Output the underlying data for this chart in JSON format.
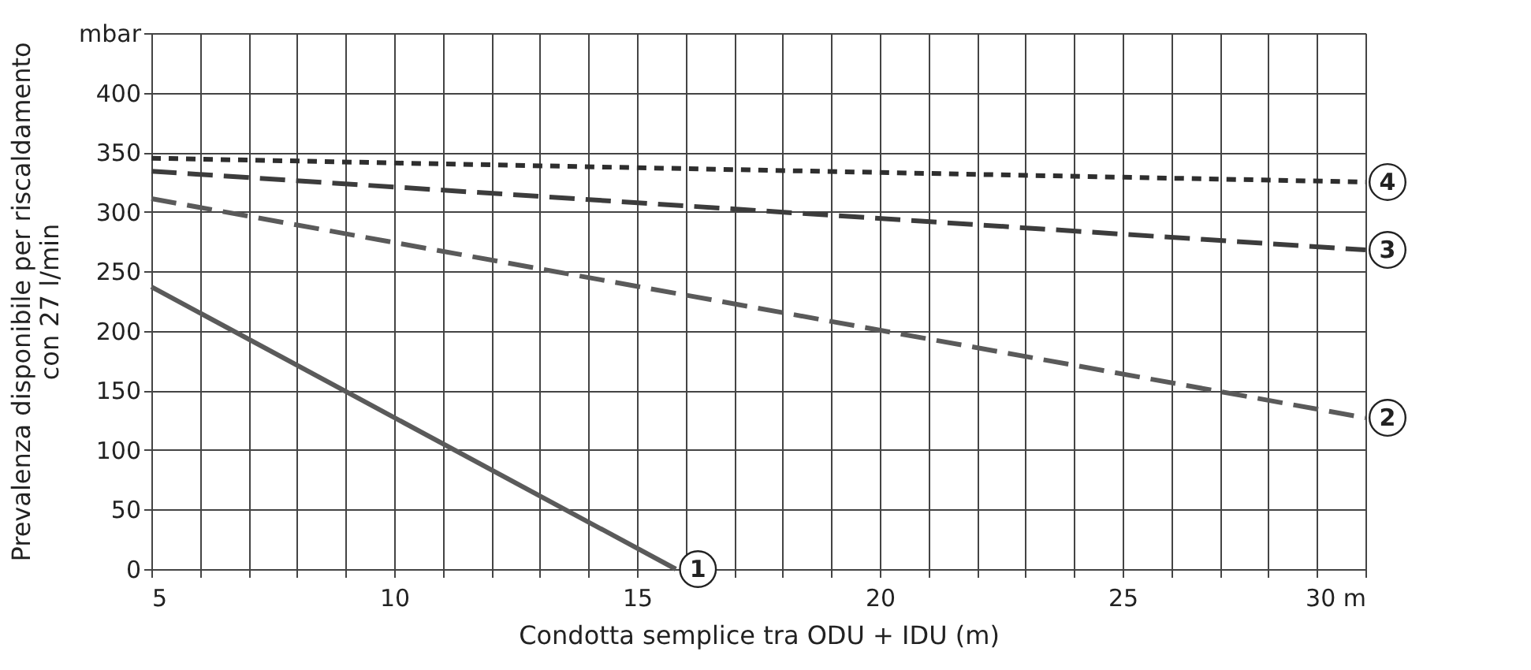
{
  "chart_data": {
    "type": "line",
    "xlabel": "Condotta semplice tra ODU + IDU  (m)",
    "ylabel": "Prevalenza disponibile per riscaldamento con 27 l/min",
    "series": [
      {
        "name": "1",
        "color": "#5a5a5a",
        "line_style": "solid",
        "x": [
          5,
          15.8
        ],
        "values": [
          237,
          0
        ]
      },
      {
        "name": "2",
        "color": "#5a5a5a",
        "line_style": "dashed",
        "x": [
          5,
          30
        ],
        "values": [
          311,
          127
        ]
      },
      {
        "name": "3",
        "color": "#3c3c3c",
        "line_style": "dashed",
        "x": [
          5,
          30
        ],
        "values": [
          334,
          268
        ]
      },
      {
        "name": "4",
        "color": "#2e2e2e",
        "line_style": "dotted",
        "x": [
          5,
          30
        ],
        "values": [
          345,
          325
        ]
      }
    ],
    "xlim": [
      5,
      30
    ],
    "xticks": [
      5,
      {
        "value": 6,
        "label": null
      },
      {
        "value": 7,
        "label": null
      },
      {
        "value": 8,
        "label": null
      },
      {
        "value": 9,
        "label": null
      },
      10,
      {
        "value": 11,
        "label": null
      },
      {
        "value": 12,
        "label": null
      },
      {
        "value": 13,
        "label": null
      },
      {
        "value": 14,
        "label": null
      },
      15,
      {
        "value": 16,
        "label": null
      },
      {
        "value": 17,
        "label": null
      },
      {
        "value": 18,
        "label": null
      },
      {
        "value": 19,
        "label": null
      },
      20,
      {
        "value": 21,
        "label": null
      },
      {
        "value": 22,
        "label": null
      },
      {
        "value": 23,
        "label": null
      },
      {
        "value": 24,
        "label": null
      },
      25,
      {
        "value": 26,
        "label": null
      },
      {
        "value": 27,
        "label": null
      },
      {
        "value": 28,
        "label": null
      },
      {
        "value": 29,
        "label": null
      },
      {
        "value": 30,
        "label": "30 m"
      }
    ],
    "ylim": [
      0,
      450
    ],
    "yticks": [
      0,
      50,
      100,
      150,
      200,
      250,
      300,
      350,
      400,
      {
        "value": 450,
        "label": "mbar"
      }
    ],
    "grid": true
  }
}
